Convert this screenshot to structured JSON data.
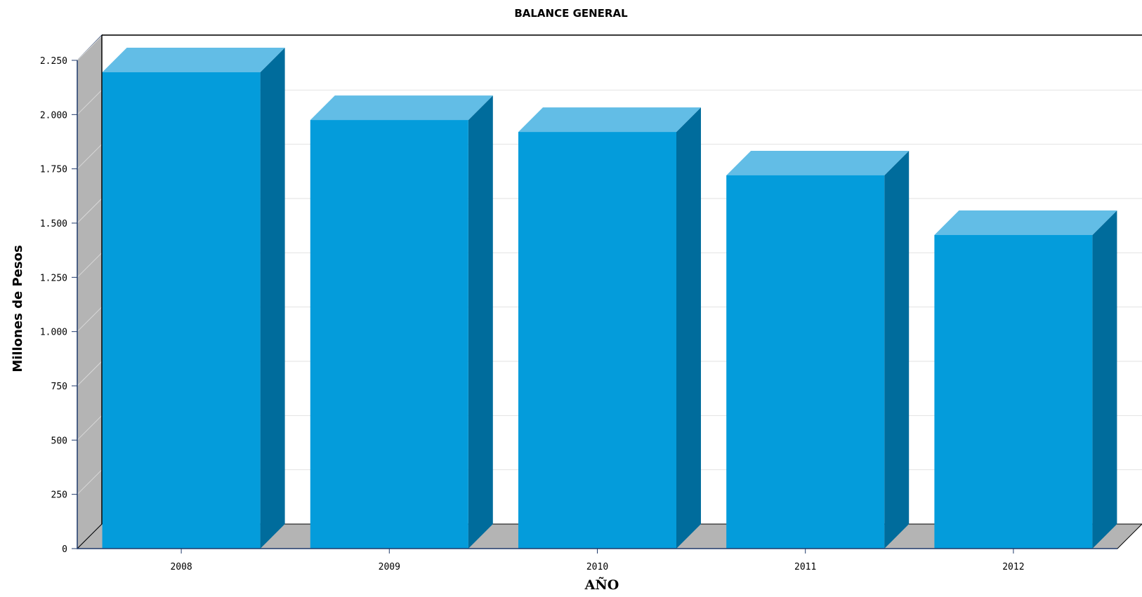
{
  "chart_data": {
    "type": "bar",
    "title": "BALANCE GENERAL",
    "xlabel": "AÑO",
    "ylabel": "Millones de Pesos",
    "categories": [
      "2008",
      "2009",
      "2010",
      "2011",
      "2012"
    ],
    "values": [
      2195,
      1975,
      1920,
      1720,
      1445
    ],
    "ylim": [
      0,
      2250
    ],
    "yticks": [
      0,
      250,
      500,
      750,
      1000,
      1250,
      1500,
      1750,
      2000,
      2250
    ],
    "ytick_labels": [
      "0",
      "250",
      "500",
      "750",
      "1.000",
      "1.250",
      "1.500",
      "1.750",
      "2.000",
      "2.250"
    ],
    "grid": true,
    "legend": "none",
    "style": "3d",
    "colors": {
      "bar_front": "#049cdb",
      "bar_top": "#62bde6",
      "bar_side": "#006c9c",
      "wall": "#b4b4b4",
      "grid": "#e2e2e2",
      "axis": "#1f3a6b"
    }
  }
}
